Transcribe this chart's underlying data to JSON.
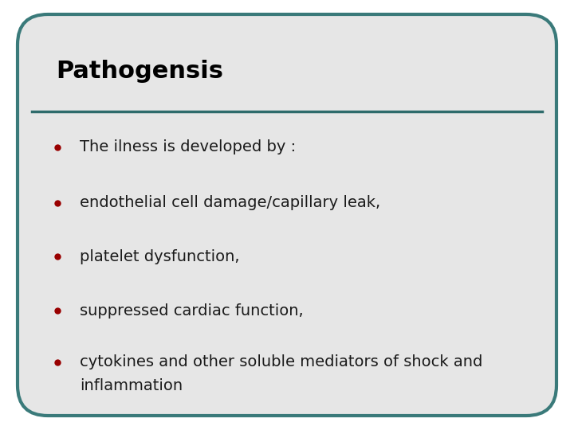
{
  "title": "Pathogensis",
  "title_fontsize": 22,
  "title_color": "#000000",
  "title_fontweight": "bold",
  "title_fontfamily": "DejaVu Sans",
  "divider_color": "#2e6b6b",
  "bullet_color": "#990000",
  "bullet_text_color": "#1a1a1a",
  "bullet_fontsize": 14,
  "bullet_fontfamily": "DejaVu Sans",
  "bullets": [
    "The ilness is developed by :",
    "endothelial cell damage/capillary leak,",
    "platelet dysfunction,",
    "suppressed cardiac function,",
    "cytokines and other soluble mediators of shock and"
  ],
  "last_line": "inflammation",
  "bg_outer": "#ffffff",
  "bg_box": "#e6e6e6",
  "bg_content": "#e6e6e6",
  "border_color": "#3a7a7a",
  "border_linewidth": 3.0
}
